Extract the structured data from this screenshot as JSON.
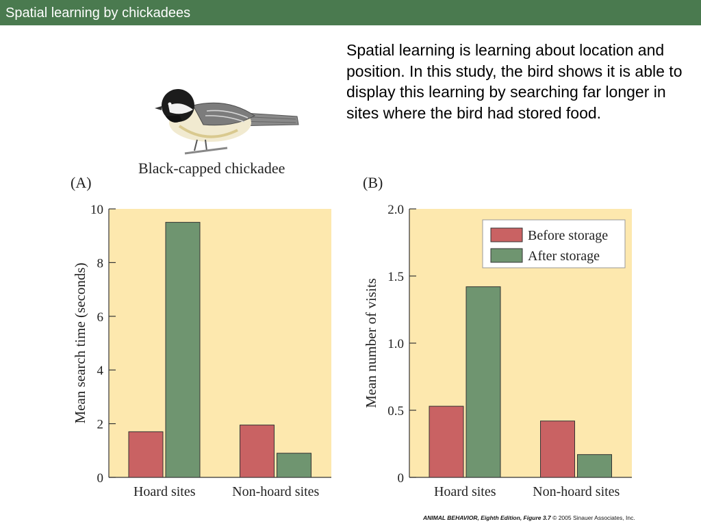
{
  "title": "Spatial learning by chickadees",
  "body_text": "Spatial learning is learning about location and position.  In this study, the bird shows it is able to display this learning by searching far longer in sites where the bird had stored food.",
  "bird_caption": "Black-capped chickadee",
  "credit": {
    "book": "ANIMAL BEHAVIOR, Eighth Edition, Figure 3.7",
    "rest": " © 2005 Sinauer Associates, Inc."
  },
  "colors": {
    "title_bar": "#4a7a4f",
    "plot_bg": "#fde8ae",
    "before": "#c96263",
    "after": "#6f9570"
  },
  "chart_data": [
    {
      "type": "bar",
      "panel": "(A)",
      "categories": [
        "Hoard sites",
        "Non-hoard sites"
      ],
      "series": [
        {
          "values": [
            1.7,
            1.95
          ]
        },
        {
          "values": [
            9.5,
            0.9
          ]
        }
      ],
      "xlabel": "",
      "ylabel": "Mean search time (seconds)",
      "ylim": [
        0,
        10
      ],
      "yticks": [
        "0",
        "2",
        "4",
        "6",
        "8",
        "10"
      ],
      "ytick_values": [
        0,
        2,
        4,
        6,
        8,
        10
      ],
      "grid": false,
      "legend": null
    },
    {
      "type": "bar",
      "panel": "(B)",
      "categories": [
        "Hoard sites",
        "Non-hoard sites"
      ],
      "series": [
        {
          "name": "Before storage",
          "values": [
            0.53,
            0.42
          ]
        },
        {
          "name": "After storage",
          "values": [
            1.42,
            0.17
          ]
        }
      ],
      "xlabel": "",
      "ylabel": "Mean number of visits",
      "ylim": [
        0,
        2.0
      ],
      "yticks": [
        "0",
        "0.5",
        "1.0",
        "1.5",
        "2.0"
      ],
      "ytick_values": [
        0,
        0.5,
        1.0,
        1.5,
        2.0
      ],
      "grid": false,
      "legend": "top-right"
    }
  ]
}
